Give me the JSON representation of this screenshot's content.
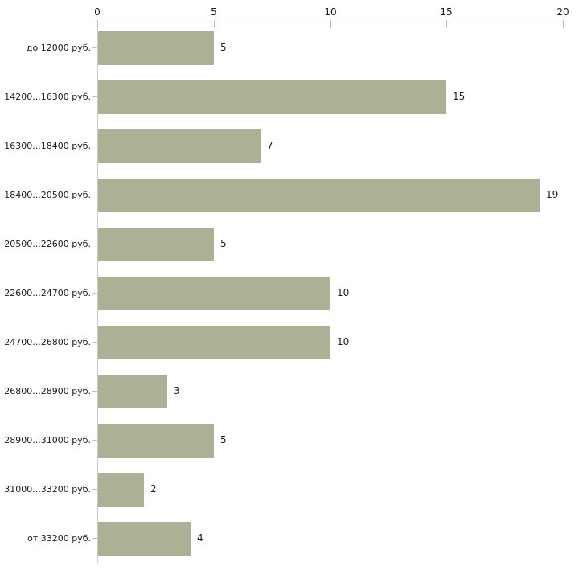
{
  "chart_data": {
    "type": "bar",
    "orientation": "horizontal",
    "title": "",
    "xlabel": "",
    "ylabel": "",
    "categories": [
      "до 12000 руб.",
      "14200...16300 руб.",
      "16300...18400 руб.",
      "18400...20500 руб.",
      "20500...22600 руб.",
      "22600...24700 руб.",
      "24700...26800 руб.",
      "26800...28900 руб.",
      "28900...31000 руб.",
      "31000...33200 руб.",
      "от 33200 руб."
    ],
    "values": [
      5,
      15,
      7,
      19,
      5,
      10,
      10,
      3,
      5,
      2,
      4
    ],
    "value_labels": [
      "5",
      "15",
      "7",
      "19",
      "5",
      "10",
      "10",
      "3",
      "5",
      "2",
      "4"
    ],
    "xlim": [
      0,
      20
    ],
    "x_ticks": [
      0,
      5,
      10,
      15,
      20
    ],
    "x_tick_labels": [
      "0",
      "5",
      "10",
      "15",
      "20"
    ],
    "grid": false,
    "legend": null,
    "axis_position": "top",
    "colors": {
      "bar_fill": "#ACB195",
      "axis_line_horizontal": "#ABABAB",
      "axis_line_vertical": "#C9C9C9",
      "tick_mark": "#C2C29C",
      "text": "#1B1B1B",
      "background": "#FFFFFF"
    }
  }
}
